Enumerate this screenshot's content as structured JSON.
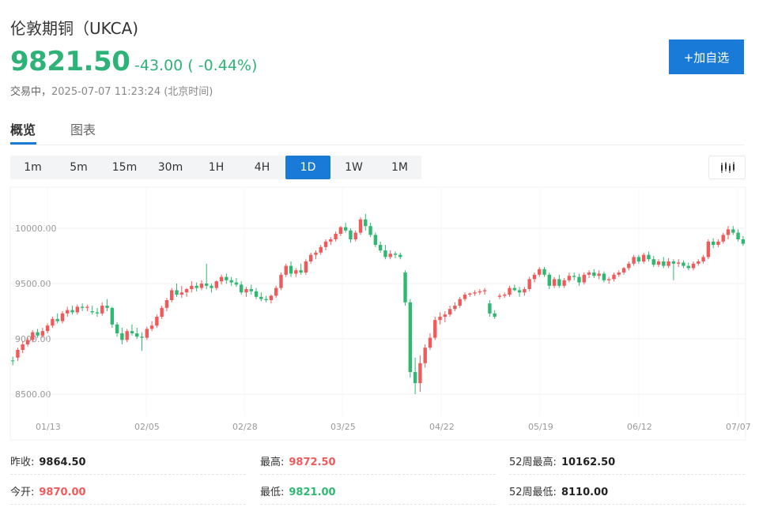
{
  "header": {
    "title": "伦敦期铜（UKCA)",
    "price": "9821.50",
    "change": "-43.00 ( -0.44%)",
    "status": "交易中，",
    "timestamp": "2025-07-07 11:23:24 (北京时间)",
    "watch_button": "+加自选"
  },
  "tabs": [
    {
      "label": "概览",
      "active": true
    },
    {
      "label": "图表",
      "active": false
    }
  ],
  "periods": [
    "1m",
    "5m",
    "15m",
    "30m",
    "1H",
    "4H",
    "1D",
    "1W",
    "1M"
  ],
  "active_period": "1D",
  "chart_type_icon": "candlestick-icon",
  "colors": {
    "up": "#f15a5a",
    "down": "#2fb872",
    "accent": "#1a7ad8",
    "price": "#2db277"
  },
  "chart_data": {
    "type": "candlestick",
    "y_ticks": [
      "10000.00",
      "9500.00",
      "9000.00",
      "8500.00"
    ],
    "y_tick_values": [
      10000,
      9500,
      9000,
      8500
    ],
    "x_labels": [
      "01/13",
      "02/05",
      "02/28",
      "03/25",
      "04/22",
      "05/19",
      "06/12",
      "07/07"
    ],
    "ylim": [
      8300,
      10300
    ],
    "grid": true,
    "ohlc": [
      [
        8805,
        8840,
        8760,
        8800
      ],
      [
        8830,
        8920,
        8800,
        8900
      ],
      [
        8900,
        8980,
        8870,
        8950
      ],
      [
        8950,
        9010,
        8930,
        8990
      ],
      [
        8990,
        9080,
        8970,
        9060
      ],
      [
        9060,
        9090,
        9010,
        9030
      ],
      [
        9030,
        9100,
        9010,
        9070
      ],
      [
        9070,
        9140,
        9050,
        9120
      ],
      [
        9120,
        9200,
        9100,
        9180
      ],
      [
        9180,
        9230,
        9140,
        9160
      ],
      [
        9160,
        9250,
        9140,
        9230
      ],
      [
        9230,
        9290,
        9200,
        9260
      ],
      [
        9260,
        9300,
        9220,
        9240
      ],
      [
        9240,
        9310,
        9220,
        9290
      ],
      [
        9290,
        9320,
        9250,
        9280
      ],
      [
        9280,
        9310,
        9250,
        9290
      ],
      [
        9250,
        9300,
        9220,
        9240
      ],
      [
        9240,
        9280,
        9200,
        9230
      ],
      [
        9230,
        9330,
        9210,
        9300
      ],
      [
        9300,
        9360,
        9250,
        9280
      ],
      [
        9280,
        9290,
        9100,
        9130
      ],
      [
        9130,
        9150,
        9020,
        9050
      ],
      [
        9050,
        9100,
        8950,
        8990
      ],
      [
        8990,
        9090,
        8970,
        9070
      ],
      [
        9070,
        9130,
        9030,
        9050
      ],
      [
        9050,
        9100,
        9000,
        9020
      ],
      [
        9020,
        9060,
        8890,
        9010
      ],
      [
        9010,
        9110,
        8990,
        9090
      ],
      [
        9090,
        9160,
        9070,
        9120
      ],
      [
        9120,
        9220,
        9100,
        9200
      ],
      [
        9200,
        9300,
        9180,
        9280
      ],
      [
        9280,
        9370,
        9250,
        9350
      ],
      [
        9350,
        9460,
        9330,
        9440
      ],
      [
        9440,
        9500,
        9380,
        9400
      ],
      [
        9400,
        9480,
        9370,
        9420
      ],
      [
        9420,
        9460,
        9380,
        9450
      ],
      [
        9450,
        9520,
        9420,
        9480
      ],
      [
        9480,
        9510,
        9430,
        9460
      ],
      [
        9460,
        9530,
        9440,
        9500
      ],
      [
        9500,
        9680,
        9450,
        9480
      ],
      [
        9480,
        9500,
        9420,
        9460
      ],
      [
        9460,
        9530,
        9440,
        9520
      ],
      [
        9520,
        9580,
        9490,
        9560
      ],
      [
        9560,
        9590,
        9500,
        9530
      ],
      [
        9530,
        9560,
        9480,
        9510
      ],
      [
        9510,
        9550,
        9470,
        9490
      ],
      [
        9490,
        9520,
        9400,
        9420
      ],
      [
        9420,
        9470,
        9380,
        9450
      ],
      [
        9450,
        9490,
        9400,
        9430
      ],
      [
        9430,
        9460,
        9360,
        9380
      ],
      [
        9380,
        9420,
        9340,
        9360
      ],
      [
        9360,
        9390,
        9330,
        9350
      ],
      [
        9350,
        9400,
        9320,
        9390
      ],
      [
        9390,
        9480,
        9370,
        9460
      ],
      [
        9460,
        9600,
        9440,
        9580
      ],
      [
        9580,
        9680,
        9560,
        9660
      ],
      [
        9660,
        9700,
        9560,
        9590
      ],
      [
        9590,
        9640,
        9560,
        9620
      ],
      [
        9620,
        9680,
        9580,
        9600
      ],
      [
        9600,
        9720,
        9580,
        9700
      ],
      [
        9700,
        9780,
        9680,
        9760
      ],
      [
        9760,
        9800,
        9720,
        9780
      ],
      [
        9780,
        9850,
        9760,
        9830
      ],
      [
        9830,
        9900,
        9800,
        9880
      ],
      [
        9880,
        9920,
        9850,
        9900
      ],
      [
        9900,
        9970,
        9880,
        9950
      ],
      [
        9950,
        10020,
        9930,
        10010
      ],
      [
        10010,
        10050,
        9960,
        9980
      ],
      [
        9980,
        10000,
        9870,
        9900
      ],
      [
        9900,
        9980,
        9880,
        9960
      ],
      [
        9960,
        10100,
        9940,
        10080
      ],
      [
        10080,
        10130,
        9980,
        10020
      ],
      [
        10020,
        10050,
        9920,
        9940
      ],
      [
        9940,
        9960,
        9830,
        9850
      ],
      [
        9850,
        9880,
        9780,
        9800
      ],
      [
        9800,
        9850,
        9720,
        9740
      ],
      [
        9740,
        9800,
        9720,
        9770
      ],
      [
        9770,
        9790,
        9730,
        9760
      ],
      [
        9760,
        9780,
        9720,
        9740
      ],
      [
        9600,
        9620,
        9300,
        9330
      ],
      [
        9330,
        9360,
        8650,
        8700
      ],
      [
        8700,
        8830,
        8500,
        8600
      ],
      [
        8600,
        8850,
        8520,
        8780
      ],
      [
        8780,
        8950,
        8740,
        8920
      ],
      [
        8920,
        9050,
        8900,
        9010
      ],
      [
        9010,
        9200,
        8990,
        9170
      ],
      [
        9170,
        9240,
        9130,
        9200
      ],
      [
        9200,
        9250,
        9150,
        9220
      ],
      [
        9220,
        9300,
        9200,
        9270
      ],
      [
        9270,
        9330,
        9250,
        9300
      ],
      [
        9300,
        9380,
        9280,
        9360
      ],
      [
        9360,
        9420,
        9340,
        9400
      ],
      [
        9400,
        9420,
        9380,
        9410
      ],
      [
        9410,
        9440,
        9390,
        9420
      ],
      [
        9420,
        9450,
        9400,
        9430
      ],
      [
        9430,
        9460,
        9400,
        9440
      ],
      [
        9320,
        9350,
        9200,
        9230
      ],
      [
        9230,
        9260,
        9180,
        9200
      ],
      [
        9380,
        9410,
        9360,
        9390
      ],
      [
        9390,
        9420,
        9370,
        9400
      ],
      [
        9400,
        9480,
        9380,
        9460
      ],
      [
        9460,
        9490,
        9430,
        9440
      ],
      [
        9440,
        9470,
        9380,
        9420
      ],
      [
        9420,
        9470,
        9390,
        9450
      ],
      [
        9450,
        9560,
        9430,
        9540
      ],
      [
        9540,
        9600,
        9510,
        9580
      ],
      [
        9580,
        9650,
        9560,
        9630
      ],
      [
        9630,
        9650,
        9560,
        9580
      ],
      [
        9580,
        9600,
        9450,
        9480
      ],
      [
        9480,
        9560,
        9460,
        9540
      ],
      [
        9540,
        9580,
        9460,
        9480
      ],
      [
        9480,
        9550,
        9460,
        9530
      ],
      [
        9530,
        9600,
        9510,
        9570
      ],
      [
        9570,
        9600,
        9530,
        9560
      ],
      [
        9560,
        9590,
        9480,
        9510
      ],
      [
        9510,
        9600,
        9490,
        9580
      ],
      [
        9580,
        9620,
        9550,
        9600
      ],
      [
        9600,
        9630,
        9550,
        9570
      ],
      [
        9570,
        9620,
        9540,
        9590
      ],
      [
        9590,
        9610,
        9510,
        9530
      ],
      [
        9530,
        9560,
        9500,
        9540
      ],
      [
        9540,
        9600,
        9520,
        9580
      ],
      [
        9580,
        9620,
        9560,
        9600
      ],
      [
        9600,
        9650,
        9580,
        9640
      ],
      [
        9640,
        9700,
        9620,
        9680
      ],
      [
        9680,
        9760,
        9660,
        9740
      ],
      [
        9740,
        9760,
        9680,
        9700
      ],
      [
        9700,
        9780,
        9680,
        9760
      ],
      [
        9760,
        9790,
        9700,
        9720
      ],
      [
        9720,
        9750,
        9650,
        9670
      ],
      [
        9670,
        9720,
        9650,
        9700
      ],
      [
        9700,
        9740,
        9640,
        9660
      ],
      [
        9660,
        9730,
        9640,
        9700
      ],
      [
        9700,
        9720,
        9530,
        9680
      ],
      [
        9680,
        9720,
        9650,
        9690
      ],
      [
        9690,
        9710,
        9640,
        9660
      ],
      [
        9660,
        9690,
        9620,
        9640
      ],
      [
        9640,
        9700,
        9620,
        9680
      ],
      [
        9680,
        9720,
        9660,
        9700
      ],
      [
        9700,
        9760,
        9680,
        9740
      ],
      [
        9740,
        9900,
        9720,
        9880
      ],
      [
        9880,
        9910,
        9820,
        9850
      ],
      [
        9850,
        9900,
        9830,
        9880
      ],
      [
        9880,
        9960,
        9860,
        9940
      ],
      [
        9940,
        10020,
        9900,
        9990
      ],
      [
        9990,
        10020,
        9940,
        9960
      ],
      [
        9960,
        9990,
        9880,
        9900
      ],
      [
        9900,
        9930,
        9840,
        9860
      ]
    ]
  },
  "stats": [
    {
      "label": "昨收:",
      "value": "9864.50",
      "tone": "neutral"
    },
    {
      "label": "最高:",
      "value": "9872.50",
      "tone": "up"
    },
    {
      "label": "52周最高:",
      "value": "10162.50",
      "tone": "neutral"
    },
    {
      "label": "今开:",
      "value": "9870.00",
      "tone": "up"
    },
    {
      "label": "最低:",
      "value": "9821.00",
      "tone": "down"
    },
    {
      "label": "52周最低:",
      "value": "8110.00",
      "tone": "neutral"
    }
  ]
}
